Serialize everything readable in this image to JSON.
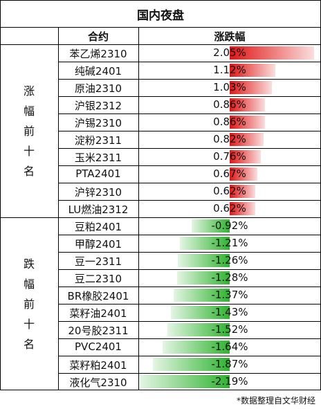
{
  "title": "国内夜盘",
  "header": {
    "contract": "合约",
    "change": "涨跌幅"
  },
  "groups": {
    "up": "涨幅前十名",
    "down": "跌幅前十名"
  },
  "colors": {
    "up_bar": "#e01515",
    "down_bar": "#2fb32f",
    "border": "#000000"
  },
  "rows": [
    {
      "name": "苯乙烯2310",
      "pct": "2.05%",
      "value": 2.05
    },
    {
      "name": "纯碱2401",
      "pct": "1.12%",
      "value": 1.12
    },
    {
      "name": "原油2310",
      "pct": "1.03%",
      "value": 1.03
    },
    {
      "name": "沪银2312",
      "pct": "0.86%",
      "value": 0.86
    },
    {
      "name": "沪锡2310",
      "pct": "0.86%",
      "value": 0.86
    },
    {
      "name": "淀粉2311",
      "pct": "0.82%",
      "value": 0.82
    },
    {
      "name": "玉米2311",
      "pct": "0.76%",
      "value": 0.76
    },
    {
      "name": "PTA2401",
      "pct": "0.67%",
      "value": 0.67
    },
    {
      "name": "沪锌2310",
      "pct": "0.62%",
      "value": 0.62
    },
    {
      "name": "LU燃油2312",
      "pct": "0.62%",
      "value": 0.62
    },
    {
      "name": "豆粕2401",
      "pct": "-0.92%",
      "value": -0.92
    },
    {
      "name": "甲醇2401",
      "pct": "-1.21%",
      "value": -1.21
    },
    {
      "name": "豆一2311",
      "pct": "-1.26%",
      "value": -1.26
    },
    {
      "name": "豆二2310",
      "pct": "-1.28%",
      "value": -1.28
    },
    {
      "name": "BR橡胶2401",
      "pct": "-1.37%",
      "value": -1.37
    },
    {
      "name": "菜籽油2401",
      "pct": "-1.43%",
      "value": -1.43
    },
    {
      "name": "20号胶2311",
      "pct": "-1.52%",
      "value": -1.52
    },
    {
      "name": "PVC2401",
      "pct": "-1.64%",
      "value": -1.64
    },
    {
      "name": "菜籽粕2401",
      "pct": "-1.87%",
      "value": -1.87
    },
    {
      "name": "液化气2310",
      "pct": "-2.19%",
      "value": -2.19
    }
  ],
  "footnote": "*数据整理自文华财经"
}
